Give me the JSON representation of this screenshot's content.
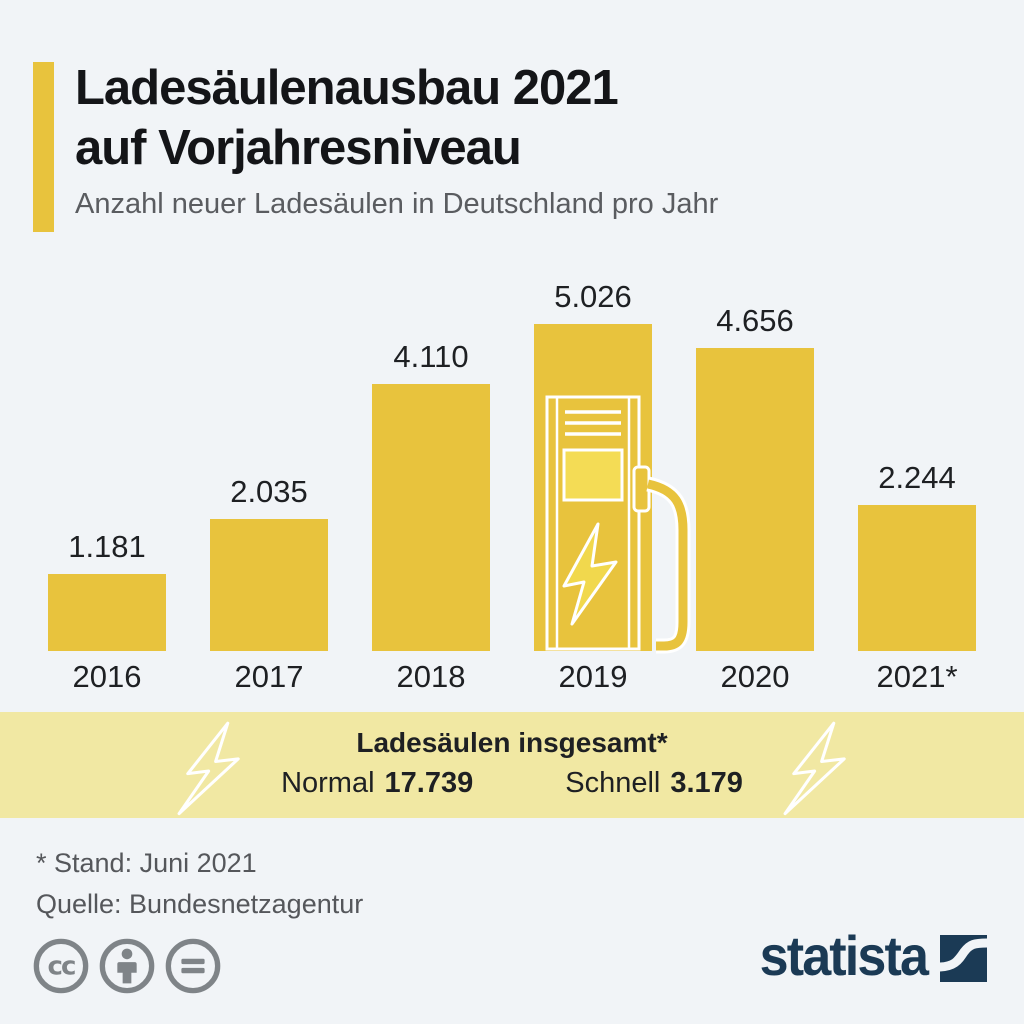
{
  "header": {
    "title_line1": "Ladesäulenausbau 2021",
    "title_line2": "auf Vorjahresniveau",
    "subtitle": "Anzahl neuer Ladesäulen in Deutschland pro Jahr"
  },
  "chart_data": {
    "type": "bar",
    "title": "Anzahl neuer Ladesäulen in Deutschland pro Jahr",
    "categories": [
      "2016",
      "2017",
      "2018",
      "2019",
      "2020",
      "2021*"
    ],
    "values": [
      1181,
      2035,
      4110,
      5026,
      4656,
      2244
    ],
    "value_labels": [
      "1.181",
      "2.035",
      "4.110",
      "5.026",
      "4.656",
      "2.244"
    ],
    "xlabel": "",
    "ylabel": "",
    "ylim": [
      0,
      5026
    ],
    "grid": false,
    "legend": false,
    "bar_color": "#E8C33D",
    "decorated_category": "2019",
    "decoration": "charging-station-illustration"
  },
  "banner": {
    "title_text": "Ladesäulen insgesamt*",
    "items": [
      {
        "label": "Normal",
        "value": "17.739"
      },
      {
        "label": "Schnell",
        "value": "3.179"
      }
    ],
    "background": "#F1E8A3",
    "decoration_icons": [
      "lightning-bolt-icon",
      "lightning-bolt-icon"
    ]
  },
  "footer": {
    "note1": "* Stand: Juni 2021",
    "note2": "Quelle: Bundesnetzagentur",
    "license_icons": [
      "cc-icon",
      "attribution-person-icon",
      "equals-icon"
    ],
    "brand": "statista"
  },
  "colors": {
    "background": "#F1F4F7",
    "bar_yellow": "#E8C33D",
    "banner_yellow": "#F1E8A3",
    "accent_yellow": "#E8C33D",
    "screen_yellow": "#F4DC55",
    "bolt_yellow": "#F1D84D",
    "title_black": "#141518",
    "text_dark": "#1E2023",
    "note_gray": "#55575B",
    "icon_gray": "#7F8488",
    "brand_navy": "#1B3A55"
  }
}
